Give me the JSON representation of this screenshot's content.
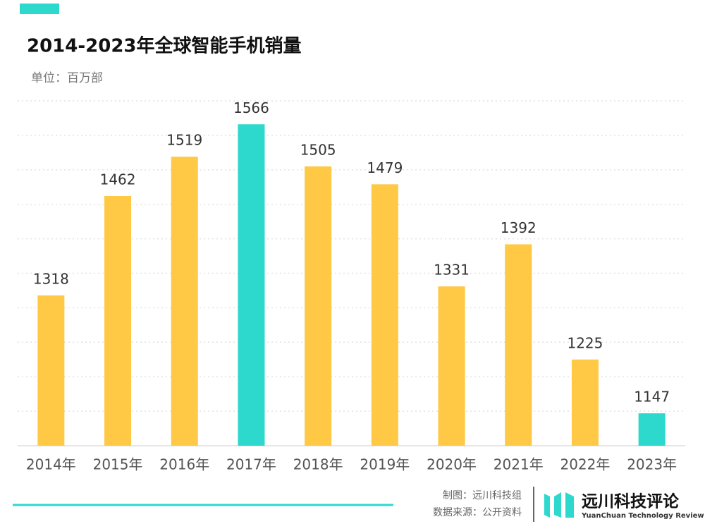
{
  "chart_data": {
    "type": "bar",
    "title": "2014-2023年全球智能手机销量",
    "subtitle": "单位：百万部",
    "categories": [
      "2014年",
      "2015年",
      "2016年",
      "2017年",
      "2018年",
      "2019年",
      "2020年",
      "2021年",
      "2022年",
      "2023年"
    ],
    "values": [
      1318,
      1462,
      1519,
      1566,
      1505,
      1479,
      1331,
      1392,
      1225,
      1147
    ],
    "colors": [
      "#ffc845",
      "#ffc845",
      "#ffc845",
      "#2dd8cc",
      "#ffc845",
      "#ffc845",
      "#ffc845",
      "#ffc845",
      "#ffc845",
      "#2dd8cc"
    ],
    "ylim": [
      1100,
      1600
    ],
    "yticks": [
      1100,
      1150,
      1200,
      1250,
      1300,
      1350,
      1400,
      1450,
      1500,
      1550,
      1600
    ],
    "grid": true
  },
  "footer": {
    "made_by": "制图：远川科技组",
    "source": "数据来源：公开资料",
    "brand": "远川科技评论",
    "brand_en": "YuanChuan Technology Review"
  }
}
